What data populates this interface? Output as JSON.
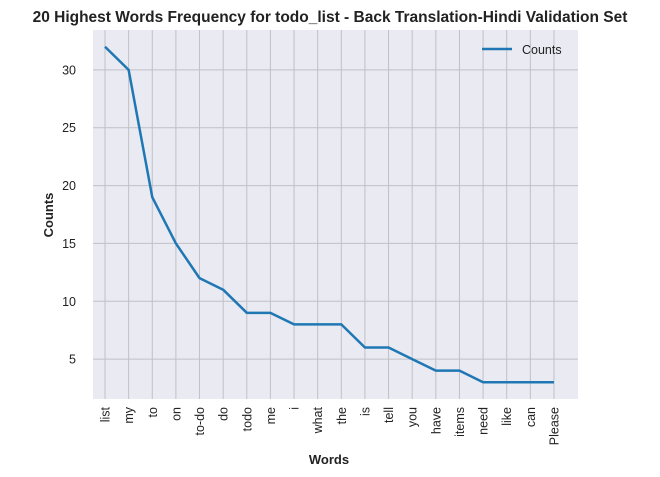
{
  "chart_data": {
    "type": "line",
    "title": "20 Highest Words Frequency for todo_list - Back Translation-Hindi Validation Set",
    "xlabel": "Words",
    "ylabel": "Counts",
    "categories": [
      "list",
      "my",
      "to",
      "on",
      "to-do",
      "do",
      "todo",
      "me",
      "i",
      "what",
      "the",
      "is",
      "tell",
      "you",
      "have",
      "items",
      "need",
      "like",
      "can",
      "Please"
    ],
    "series": [
      {
        "name": "Counts",
        "values": [
          32,
          30,
          19,
          15,
          12,
          11,
          9,
          9,
          8,
          8,
          8,
          6,
          6,
          5,
          4,
          4,
          3,
          3,
          3,
          3
        ],
        "color": "#1f77b4"
      }
    ],
    "yticks": [
      5,
      10,
      15,
      20,
      25,
      30
    ],
    "ylim": [
      1.55,
      33.45
    ],
    "grid": true,
    "legend_position": "top-right",
    "colors": {
      "plot_background": "#eaeaf2",
      "grid": "#c0c0c6"
    }
  }
}
